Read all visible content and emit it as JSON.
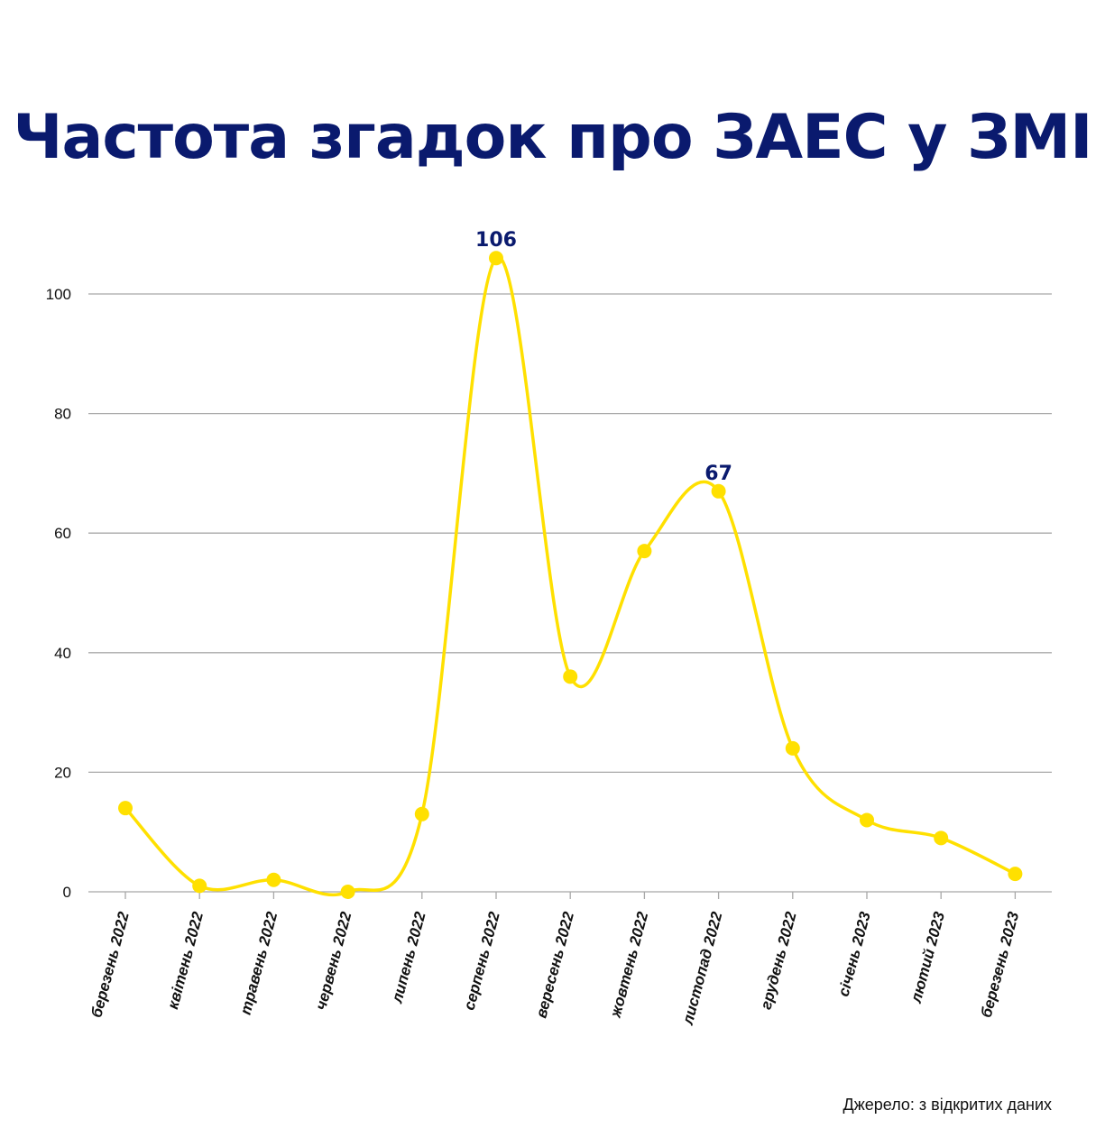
{
  "title": "Частота згадок про ЗАЕС у ЗМІ",
  "source": "Джерело: з відкритих даних",
  "colors": {
    "title": "#0a1a6e",
    "line": "#ffe000",
    "grid": "#a8a8a8",
    "annotation": "#0a1a6e",
    "axis_text": "#111111"
  },
  "chart_data": {
    "type": "line",
    "title": "Частота згадок про ЗАЕС у ЗМІ",
    "categories": [
      "березень 2022",
      "квітень 2022",
      "травень 2022",
      "червень 2022",
      "липень 2022",
      "серпень 2022",
      "вересень 2022",
      "жовтень 2022",
      "листопад 2022",
      "грудень 2022",
      "січень 2023",
      "лютий 2023",
      "березень 2023"
    ],
    "values": [
      14,
      1,
      2,
      0,
      13,
      106,
      36,
      57,
      67,
      24,
      12,
      9,
      3
    ],
    "ylim": [
      0,
      100
    ],
    "yticks": [
      0,
      20,
      40,
      60,
      80,
      100
    ],
    "grid": true,
    "smooth": true,
    "annotations": [
      {
        "index": 5,
        "text": "106"
      },
      {
        "index": 8,
        "text": "67"
      }
    ]
  }
}
